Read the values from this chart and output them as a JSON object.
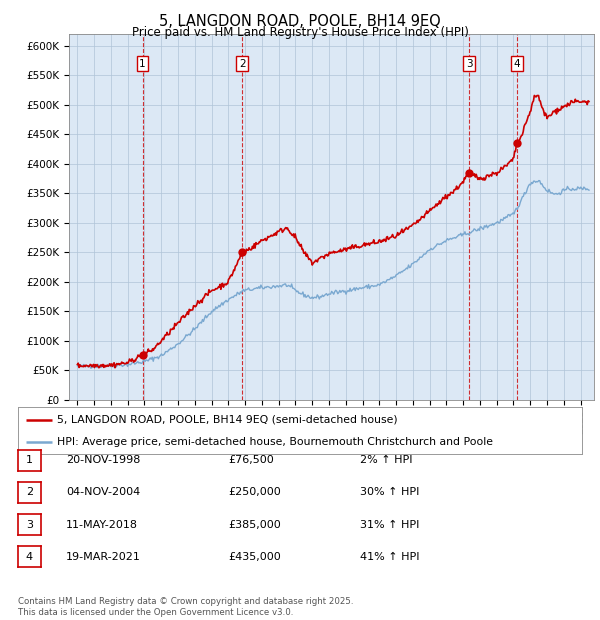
{
  "title": "5, LANGDON ROAD, POOLE, BH14 9EQ",
  "subtitle": "Price paid vs. HM Land Registry's House Price Index (HPI)",
  "ylim": [
    0,
    620000
  ],
  "yticks": [
    0,
    50000,
    100000,
    150000,
    200000,
    250000,
    300000,
    350000,
    400000,
    450000,
    500000,
    550000,
    600000
  ],
  "ytick_labels": [
    "£0",
    "£50K",
    "£100K",
    "£150K",
    "£200K",
    "£250K",
    "£300K",
    "£350K",
    "£400K",
    "£450K",
    "£500K",
    "£550K",
    "£600K"
  ],
  "sale_dates_num": [
    1998.885,
    2004.838,
    2018.36,
    2021.22
  ],
  "sale_prices": [
    76500,
    250000,
    385000,
    435000
  ],
  "sale_labels": [
    "1",
    "2",
    "3",
    "4"
  ],
  "sale_color": "#cc0000",
  "hpi_color": "#7aa8d0",
  "legend_entries": [
    "5, LANGDON ROAD, POOLE, BH14 9EQ (semi-detached house)",
    "HPI: Average price, semi-detached house, Bournemouth Christchurch and Poole"
  ],
  "table_rows": [
    {
      "num": "1",
      "date": "20-NOV-1998",
      "price": "£76,500",
      "change": "2% ↑ HPI"
    },
    {
      "num": "2",
      "date": "04-NOV-2004",
      "price": "£250,000",
      "change": "30% ↑ HPI"
    },
    {
      "num": "3",
      "date": "11-MAY-2018",
      "price": "£385,000",
      "change": "31% ↑ HPI"
    },
    {
      "num": "4",
      "date": "19-MAR-2021",
      "price": "£435,000",
      "change": "41% ↑ HPI"
    }
  ],
  "footer": "Contains HM Land Registry data © Crown copyright and database right 2025.\nThis data is licensed under the Open Government Licence v3.0.",
  "background_color": "#ffffff",
  "plot_bg_color": "#dce8f5",
  "grid_color": "#b0c4d8",
  "xlim_start": 1994.5,
  "xlim_end": 2025.8,
  "hpi_anchors": [
    [
      1995.0,
      57000
    ],
    [
      1996.0,
      57500
    ],
    [
      1997.0,
      58000
    ],
    [
      1998.0,
      60000
    ],
    [
      1999.0,
      65000
    ],
    [
      2000.0,
      75000
    ],
    [
      2001.0,
      95000
    ],
    [
      2002.0,
      120000
    ],
    [
      2003.0,
      150000
    ],
    [
      2004.0,
      170000
    ],
    [
      2004.9,
      185000
    ],
    [
      2005.5,
      188000
    ],
    [
      2006.0,
      190000
    ],
    [
      2007.0,
      193000
    ],
    [
      2007.5,
      195000
    ],
    [
      2008.0,
      185000
    ],
    [
      2008.5,
      178000
    ],
    [
      2009.0,
      173000
    ],
    [
      2009.5,
      175000
    ],
    [
      2010.0,
      180000
    ],
    [
      2011.0,
      185000
    ],
    [
      2012.0,
      190000
    ],
    [
      2013.0,
      195000
    ],
    [
      2014.0,
      210000
    ],
    [
      2015.0,
      230000
    ],
    [
      2016.0,
      255000
    ],
    [
      2017.0,
      270000
    ],
    [
      2018.0,
      280000
    ],
    [
      2019.0,
      290000
    ],
    [
      2019.5,
      295000
    ],
    [
      2020.0,
      300000
    ],
    [
      2021.0,
      315000
    ],
    [
      2021.5,
      340000
    ],
    [
      2022.0,
      368000
    ],
    [
      2022.5,
      372000
    ],
    [
      2023.0,
      355000
    ],
    [
      2023.5,
      348000
    ],
    [
      2024.0,
      355000
    ],
    [
      2024.5,
      358000
    ],
    [
      2025.5,
      358000
    ]
  ],
  "red_anchors": [
    [
      1995.0,
      58000
    ],
    [
      1996.0,
      58500
    ],
    [
      1997.0,
      59000
    ],
    [
      1998.0,
      63000
    ],
    [
      1998.885,
      76500
    ],
    [
      1999.5,
      85000
    ],
    [
      2000.0,
      100000
    ],
    [
      2001.0,
      130000
    ],
    [
      2002.0,
      160000
    ],
    [
      2003.0,
      185000
    ],
    [
      2004.0,
      200000
    ],
    [
      2004.838,
      250000
    ],
    [
      2005.2,
      255000
    ],
    [
      2005.5,
      260000
    ],
    [
      2006.0,
      270000
    ],
    [
      2007.0,
      285000
    ],
    [
      2007.5,
      292000
    ],
    [
      2008.0,
      275000
    ],
    [
      2008.5,
      250000
    ],
    [
      2009.0,
      232000
    ],
    [
      2009.5,
      240000
    ],
    [
      2010.0,
      248000
    ],
    [
      2011.0,
      255000
    ],
    [
      2012.0,
      262000
    ],
    [
      2013.0,
      268000
    ],
    [
      2014.0,
      278000
    ],
    [
      2015.0,
      295000
    ],
    [
      2016.0,
      320000
    ],
    [
      2017.0,
      345000
    ],
    [
      2017.5,
      355000
    ],
    [
      2018.0,
      370000
    ],
    [
      2018.36,
      385000
    ],
    [
      2018.8,
      378000
    ],
    [
      2019.0,
      375000
    ],
    [
      2019.5,
      380000
    ],
    [
      2020.0,
      385000
    ],
    [
      2020.5,
      395000
    ],
    [
      2021.0,
      408000
    ],
    [
      2021.22,
      435000
    ],
    [
      2021.5,
      448000
    ],
    [
      2022.0,
      490000
    ],
    [
      2022.3,
      518000
    ],
    [
      2022.5,
      512000
    ],
    [
      2022.8,
      488000
    ],
    [
      2023.0,
      478000
    ],
    [
      2023.5,
      490000
    ],
    [
      2024.0,
      497000
    ],
    [
      2024.5,
      505000
    ],
    [
      2025.5,
      505000
    ]
  ]
}
